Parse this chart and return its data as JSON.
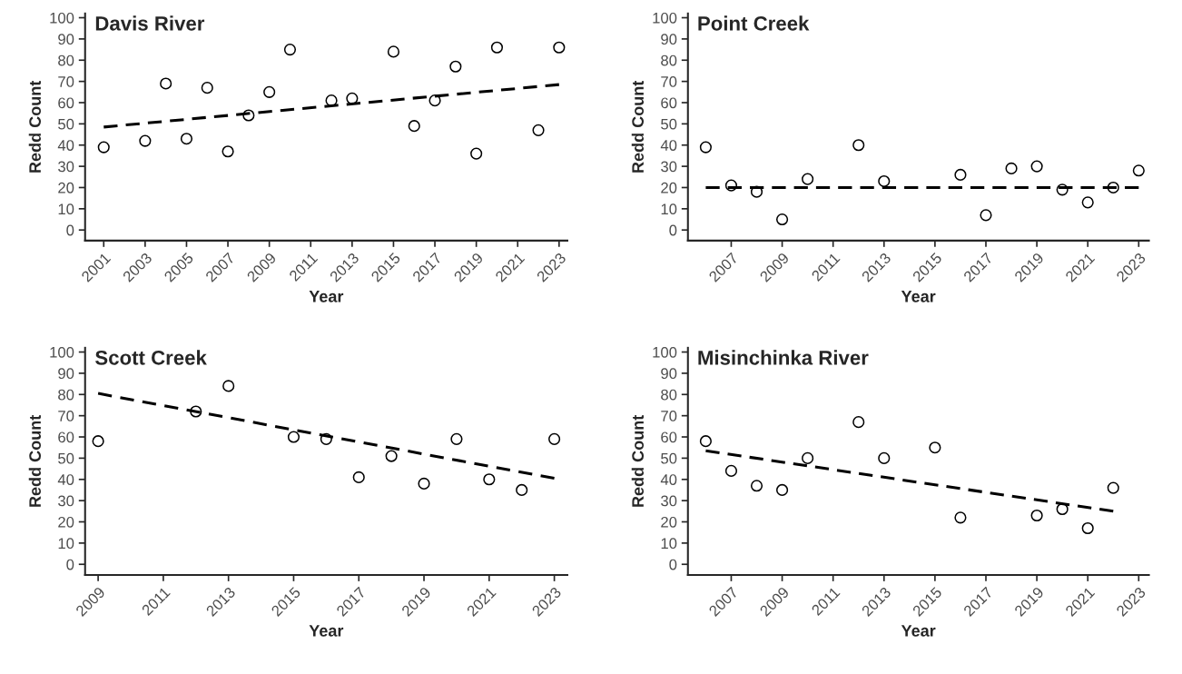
{
  "chart_data": [
    {
      "type": "scatter",
      "title": "Davis River",
      "xlabel": "Year",
      "ylabel": "Redd Count",
      "xlim": [
        2000.1,
        2023.4
      ],
      "ylim": [
        -5,
        102
      ],
      "xticks": [
        2001,
        2003,
        2005,
        2007,
        2009,
        2011,
        2013,
        2015,
        2017,
        2019,
        2021,
        2023
      ],
      "yticks": [
        0,
        10,
        20,
        30,
        40,
        50,
        60,
        70,
        80,
        90,
        100
      ],
      "grid": false,
      "legend": false,
      "series": [
        {
          "type": "scatter",
          "marker": "circle",
          "color": "#000000",
          "x": [
            2001,
            2003,
            2004,
            2005,
            2006,
            2007,
            2008,
            2009,
            2010,
            2012,
            2013,
            2015,
            2016,
            2017,
            2018,
            2019,
            2020,
            2022,
            2023
          ],
          "values": [
            39,
            42,
            69,
            43,
            67,
            37,
            54,
            65,
            85,
            61,
            62,
            84,
            49,
            61,
            77,
            36,
            86,
            47,
            86
          ]
        },
        {
          "type": "line",
          "line_style": "dashed",
          "color": "#000000",
          "x": [
            2001,
            2023
          ],
          "values": [
            48.5,
            68.5
          ]
        }
      ]
    },
    {
      "type": "scatter",
      "title": "Point Creek",
      "xlabel": "Year",
      "ylabel": "Redd Count",
      "xlim": [
        2005.3,
        2023.4
      ],
      "ylim": [
        -5,
        102
      ],
      "xticks": [
        2007,
        2009,
        2011,
        2013,
        2015,
        2017,
        2019,
        2021,
        2023
      ],
      "yticks": [
        0,
        10,
        20,
        30,
        40,
        50,
        60,
        70,
        80,
        90,
        100
      ],
      "grid": false,
      "legend": false,
      "series": [
        {
          "type": "scatter",
          "marker": "circle",
          "color": "#000000",
          "x": [
            2006,
            2007,
            2008,
            2009,
            2010,
            2012,
            2013,
            2016,
            2017,
            2018,
            2019,
            2020,
            2021,
            2022,
            2023
          ],
          "values": [
            39,
            21,
            18,
            5,
            24,
            40,
            23,
            26,
            7,
            29,
            30,
            19,
            13,
            20,
            28
          ]
        },
        {
          "type": "line",
          "line_style": "dashed",
          "color": "#000000",
          "x": [
            2006,
            2023
          ],
          "values": [
            20,
            20
          ]
        }
      ]
    },
    {
      "type": "scatter",
      "title": "Scott Creek",
      "xlabel": "Year",
      "ylabel": "Redd Count",
      "xlim": [
        2008.6,
        2023.4
      ],
      "ylim": [
        -5,
        102
      ],
      "xticks": [
        2009,
        2011,
        2013,
        2015,
        2017,
        2019,
        2021,
        2023
      ],
      "yticks": [
        0,
        10,
        20,
        30,
        40,
        50,
        60,
        70,
        80,
        90,
        100
      ],
      "grid": false,
      "legend": false,
      "series": [
        {
          "type": "scatter",
          "marker": "circle",
          "color": "#000000",
          "x": [
            2009,
            2012,
            2013,
            2015,
            2016,
            2017,
            2018,
            2019,
            2020,
            2021,
            2022,
            2023
          ],
          "values": [
            58,
            72,
            84,
            60,
            59,
            41,
            51,
            38,
            59,
            40,
            35,
            59
          ]
        },
        {
          "type": "line",
          "line_style": "dashed",
          "color": "#000000",
          "x": [
            2009,
            2023
          ],
          "values": [
            80.5,
            40.5
          ]
        }
      ]
    },
    {
      "type": "scatter",
      "title": "Misinchinka River",
      "xlabel": "Year",
      "ylabel": "Redd Count",
      "xlim": [
        2005.3,
        2023.4
      ],
      "ylim": [
        -5,
        102
      ],
      "xticks": [
        2007,
        2009,
        2011,
        2013,
        2015,
        2017,
        2019,
        2021,
        2023
      ],
      "yticks": [
        0,
        10,
        20,
        30,
        40,
        50,
        60,
        70,
        80,
        90,
        100
      ],
      "grid": false,
      "legend": false,
      "series": [
        {
          "type": "scatter",
          "marker": "circle",
          "color": "#000000",
          "x": [
            2006,
            2007,
            2008,
            2009,
            2010,
            2012,
            2013,
            2015,
            2016,
            2019,
            2020,
            2021,
            2022
          ],
          "values": [
            58,
            44,
            37,
            35,
            50,
            67,
            50,
            55,
            22,
            23,
            26,
            17,
            36
          ]
        },
        {
          "type": "line",
          "line_style": "dashed",
          "color": "#000000",
          "x": [
            2006,
            2022
          ],
          "values": [
            53.5,
            25
          ]
        }
      ]
    }
  ]
}
